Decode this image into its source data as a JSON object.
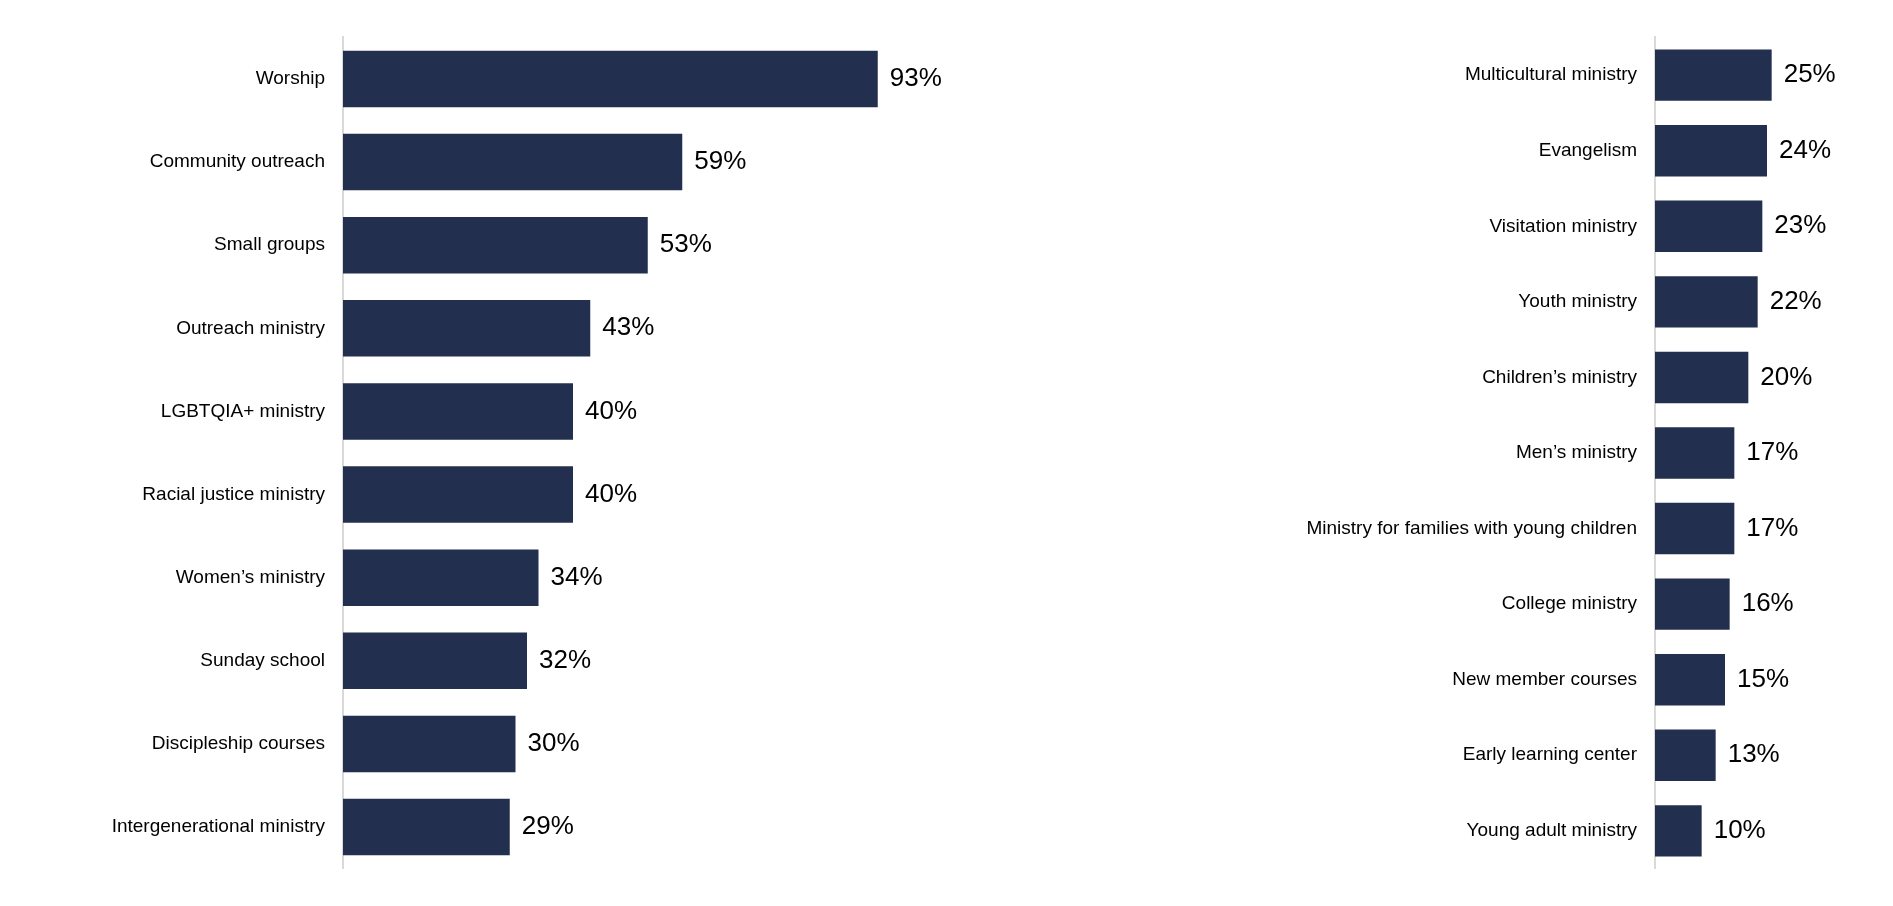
{
  "chart_data": [
    {
      "type": "bar",
      "orientation": "horizontal",
      "categories": [
        "Worship",
        "Community outreach",
        "Small groups",
        "Outreach ministry",
        "LGBTQIA+ ministry",
        "Racial justice ministry",
        "Women’s ministry",
        "Sunday school",
        "Discipleship courses",
        "Intergenerational ministry"
      ],
      "values": [
        93,
        59,
        53,
        43,
        40,
        40,
        34,
        32,
        30,
        29
      ],
      "value_labels": [
        "93%",
        "59%",
        "53%",
        "43%",
        "40%",
        "40%",
        "34%",
        "32%",
        "30%",
        "29%"
      ],
      "color": "#232f4e",
      "tick_labels": "y"
    },
    {
      "type": "bar",
      "orientation": "horizontal",
      "categories": [
        "Multicultural ministry",
        "Evangelism",
        "Visitation ministry",
        "Youth ministry",
        "Children’s ministry",
        "Men’s ministry",
        "Ministry for families with young children",
        "College ministry",
        "New member courses",
        "Early learning center",
        "Young adult ministry"
      ],
      "values": [
        25,
        24,
        23,
        22,
        20,
        17,
        17,
        16,
        15,
        13,
        10
      ],
      "value_labels": [
        "25%",
        "24%",
        "23%",
        "22%",
        "20%",
        "17%",
        "17%",
        "16%",
        "15%",
        "13%",
        "10%"
      ],
      "color": "#232f4e",
      "tick_labels": "y"
    }
  ]
}
